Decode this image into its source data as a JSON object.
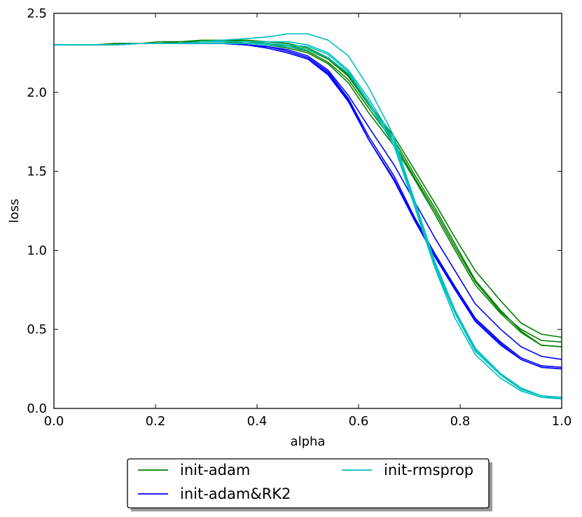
{
  "chart_data": {
    "type": "line",
    "title": "",
    "xlabel": "alpha",
    "ylabel": "loss",
    "xlim": [
      0.0,
      1.0
    ],
    "ylim": [
      0.0,
      2.5
    ],
    "xticks": [
      "0.0",
      "0.2",
      "0.4",
      "0.6",
      "0.8",
      "1.0"
    ],
    "yticks": [
      "0.0",
      "0.5",
      "1.0",
      "1.5",
      "2.0",
      "2.5"
    ],
    "grid": false,
    "legend_position": "bottom-center",
    "x": [
      0.0,
      0.04,
      0.08,
      0.12,
      0.17,
      0.21,
      0.25,
      0.29,
      0.33,
      0.38,
      0.42,
      0.46,
      0.5,
      0.54,
      0.58,
      0.62,
      0.67,
      0.71,
      0.75,
      0.79,
      0.83,
      0.88,
      0.92,
      0.96,
      1.0
    ],
    "groups": [
      {
        "name": "init-adam",
        "color": "#008000",
        "series": [
          {
            "values": [
              2.3,
              2.3,
              2.3,
              2.3,
              2.31,
              2.31,
              2.31,
              2.32,
              2.32,
              2.32,
              2.31,
              2.3,
              2.27,
              2.21,
              2.1,
              1.92,
              1.7,
              1.48,
              1.27,
              1.04,
              0.81,
              0.62,
              0.49,
              0.4,
              0.39
            ]
          },
          {
            "values": [
              2.3,
              2.3,
              2.3,
              2.3,
              2.31,
              2.31,
              2.32,
              2.32,
              2.32,
              2.31,
              2.3,
              2.28,
              2.25,
              2.18,
              2.06,
              1.87,
              1.66,
              1.45,
              1.23,
              1.0,
              0.78,
              0.6,
              0.48,
              0.4,
              0.39
            ]
          },
          {
            "values": [
              2.3,
              2.3,
              2.3,
              2.3,
              2.31,
              2.31,
              2.32,
              2.32,
              2.33,
              2.33,
              2.32,
              2.31,
              2.28,
              2.22,
              2.11,
              1.93,
              1.72,
              1.51,
              1.3,
              1.08,
              0.87,
              0.68,
              0.54,
              0.47,
              0.45
            ]
          },
          {
            "values": [
              2.3,
              2.3,
              2.3,
              2.31,
              2.31,
              2.32,
              2.32,
              2.33,
              2.33,
              2.32,
              2.31,
              2.29,
              2.26,
              2.19,
              2.08,
              1.9,
              1.68,
              1.46,
              1.25,
              1.02,
              0.8,
              0.61,
              0.5,
              0.43,
              0.42
            ]
          }
        ]
      },
      {
        "name": "init-adam&RK2",
        "color": "#0000ff",
        "series": [
          {
            "values": [
              2.3,
              2.3,
              2.3,
              2.3,
              2.31,
              2.31,
              2.31,
              2.31,
              2.31,
              2.3,
              2.28,
              2.25,
              2.21,
              2.12,
              1.95,
              1.7,
              1.44,
              1.19,
              0.96,
              0.75,
              0.55,
              0.4,
              0.31,
              0.26,
              0.25
            ]
          },
          {
            "values": [
              2.3,
              2.3,
              2.3,
              2.3,
              2.31,
              2.31,
              2.31,
              2.31,
              2.31,
              2.3,
              2.29,
              2.26,
              2.22,
              2.13,
              1.96,
              1.72,
              1.47,
              1.21,
              0.98,
              0.77,
              0.57,
              0.42,
              0.32,
              0.27,
              0.26
            ]
          },
          {
            "values": [
              2.3,
              2.3,
              2.3,
              2.3,
              2.31,
              2.31,
              2.31,
              2.31,
              2.31,
              2.3,
              2.29,
              2.27,
              2.23,
              2.14,
              1.98,
              1.78,
              1.54,
              1.31,
              1.08,
              0.87,
              0.66,
              0.5,
              0.39,
              0.33,
              0.31
            ]
          },
          {
            "values": [
              2.3,
              2.3,
              2.3,
              2.3,
              2.31,
              2.31,
              2.31,
              2.31,
              2.31,
              2.3,
              2.28,
              2.25,
              2.21,
              2.11,
              1.94,
              1.7,
              1.45,
              1.2,
              0.97,
              0.76,
              0.56,
              0.41,
              0.31,
              0.26,
              0.25
            ]
          }
        ]
      },
      {
        "name": "init-rmsprop",
        "color": "#00bfbf",
        "series": [
          {
            "values": [
              2.3,
              2.3,
              2.3,
              2.3,
              2.31,
              2.31,
              2.31,
              2.32,
              2.33,
              2.34,
              2.35,
              2.37,
              2.37,
              2.33,
              2.23,
              2.03,
              1.72,
              1.3,
              0.9,
              0.6,
              0.36,
              0.21,
              0.12,
              0.08,
              0.07
            ]
          },
          {
            "values": [
              2.3,
              2.3,
              2.3,
              2.3,
              2.31,
              2.31,
              2.31,
              2.31,
              2.31,
              2.31,
              2.31,
              2.3,
              2.29,
              2.24,
              2.13,
              1.94,
              1.68,
              1.3,
              0.92,
              0.61,
              0.37,
              0.22,
              0.13,
              0.08,
              0.07
            ]
          },
          {
            "values": [
              2.3,
              2.3,
              2.3,
              2.3,
              2.31,
              2.31,
              2.31,
              2.31,
              2.31,
              2.31,
              2.3,
              2.29,
              2.27,
              2.22,
              2.12,
              1.93,
              1.66,
              1.28,
              0.89,
              0.57,
              0.34,
              0.19,
              0.11,
              0.07,
              0.06
            ]
          },
          {
            "values": [
              2.3,
              2.3,
              2.3,
              2.3,
              2.31,
              2.31,
              2.31,
              2.32,
              2.32,
              2.32,
              2.32,
              2.32,
              2.3,
              2.25,
              2.14,
              1.96,
              1.7,
              1.32,
              0.93,
              0.62,
              0.38,
              0.22,
              0.12,
              0.08,
              0.06
            ]
          }
        ]
      }
    ]
  }
}
